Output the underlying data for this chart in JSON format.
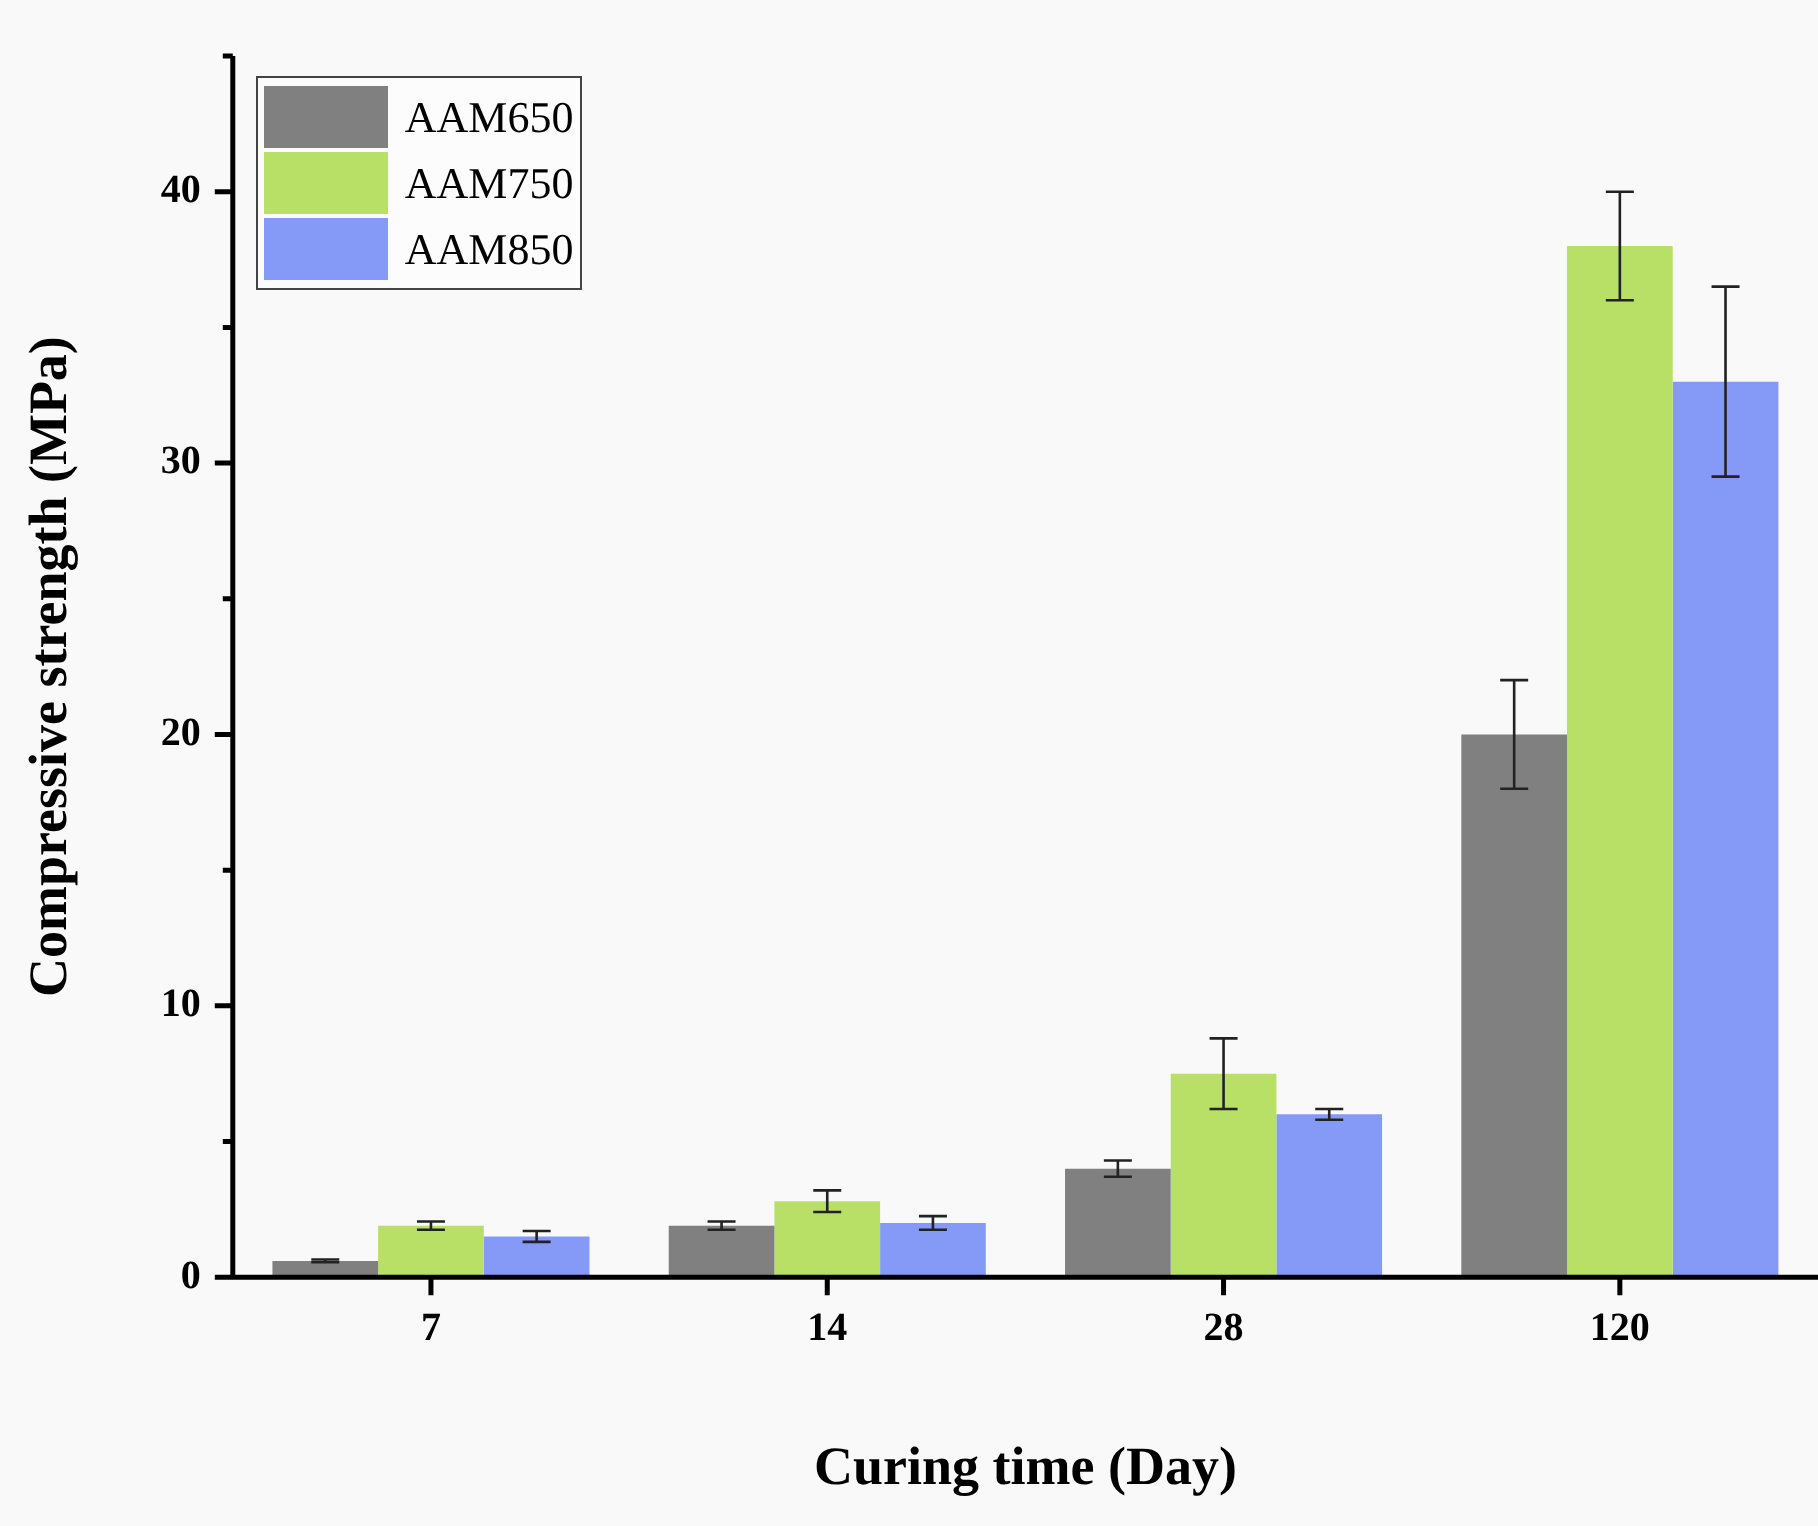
{
  "chart_data": {
    "type": "bar",
    "xlabel": "Curing time (Day)",
    "ylabel": "Compressive strength (MPa)",
    "categories": [
      "7",
      "14",
      "28",
      "120"
    ],
    "series": [
      {
        "name": "AAM650",
        "color": "#808080",
        "values": [
          0.6,
          1.9,
          4.0,
          20.0
        ],
        "errors": [
          0.05,
          0.15,
          0.3,
          2
        ]
      },
      {
        "name": "AAM750",
        "color": "#b8df66",
        "values": [
          1.9,
          2.8,
          7.5,
          38.0
        ],
        "errors": [
          0.15,
          0.4,
          1.3,
          2
        ]
      },
      {
        "name": "AAM850",
        "color": "#8599f6",
        "values": [
          1.5,
          2.0,
          6.0,
          33.0
        ],
        "errors": [
          0.2,
          0.25,
          0.2,
          3.5
        ]
      }
    ],
    "ylim": [
      0,
      45
    ],
    "yticks": [
      0,
      {
        "value": 5,
        "label": null
      },
      10,
      {
        "value": 15,
        "label": null
      },
      20,
      {
        "value": 25,
        "label": null
      },
      30,
      {
        "value": 35,
        "label": null
      },
      40,
      {
        "value": 45,
        "label": null
      }
    ],
    "grid": false,
    "legend": "top left"
  }
}
